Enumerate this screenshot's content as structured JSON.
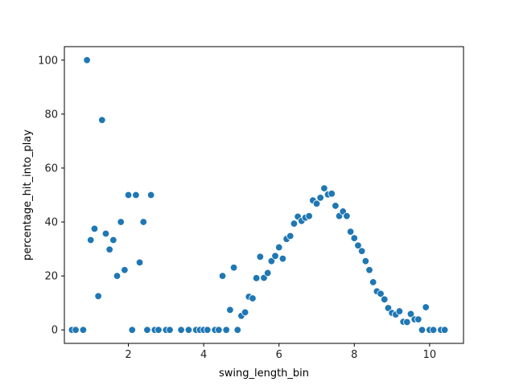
{
  "chart_data": {
    "type": "scatter",
    "xlabel": "swing_length_bin",
    "ylabel": "percentage_hit_into_play",
    "xlim": [
      0.3,
      10.9
    ],
    "ylim": [
      -5,
      105
    ],
    "xticks": [
      2,
      4,
      6,
      8,
      10
    ],
    "yticks": [
      0,
      20,
      40,
      60,
      80,
      100
    ],
    "grid": false,
    "marker_color": "#1f77b4",
    "points": [
      [
        0.5,
        0
      ],
      [
        0.6,
        0
      ],
      [
        0.8,
        0
      ],
      [
        0.9,
        100
      ],
      [
        1.0,
        33.3
      ],
      [
        1.1,
        37.5
      ],
      [
        1.2,
        12.5
      ],
      [
        1.3,
        77.8
      ],
      [
        1.4,
        35.7
      ],
      [
        1.5,
        29.8
      ],
      [
        1.6,
        33.3
      ],
      [
        1.7,
        20
      ],
      [
        1.8,
        40
      ],
      [
        1.9,
        22.2
      ],
      [
        2.0,
        50
      ],
      [
        2.1,
        0
      ],
      [
        2.2,
        50
      ],
      [
        2.3,
        25
      ],
      [
        2.4,
        40
      ],
      [
        2.5,
        0
      ],
      [
        2.6,
        50
      ],
      [
        2.7,
        0
      ],
      [
        2.8,
        0
      ],
      [
        3.0,
        0
      ],
      [
        3.1,
        0
      ],
      [
        3.4,
        0
      ],
      [
        3.6,
        0
      ],
      [
        3.8,
        0
      ],
      [
        3.9,
        0
      ],
      [
        4.0,
        0
      ],
      [
        4.1,
        0
      ],
      [
        4.3,
        0
      ],
      [
        4.4,
        0
      ],
      [
        4.5,
        20
      ],
      [
        4.6,
        0
      ],
      [
        4.7,
        7.4
      ],
      [
        4.8,
        23.1
      ],
      [
        4.9,
        0
      ],
      [
        5.0,
        5.2
      ],
      [
        5.1,
        6.5
      ],
      [
        5.2,
        12.3
      ],
      [
        5.3,
        11.7
      ],
      [
        5.4,
        19.2
      ],
      [
        5.5,
        27.1
      ],
      [
        5.6,
        19.3
      ],
      [
        5.7,
        21.1
      ],
      [
        5.8,
        25.5
      ],
      [
        5.9,
        27.4
      ],
      [
        6.0,
        30.6
      ],
      [
        6.1,
        26.4
      ],
      [
        6.2,
        33.7
      ],
      [
        6.3,
        34.8
      ],
      [
        6.4,
        39.4
      ],
      [
        6.5,
        42.0
      ],
      [
        6.6,
        40.4
      ],
      [
        6.7,
        41.6
      ],
      [
        6.8,
        42.2
      ],
      [
        6.9,
        48.0
      ],
      [
        7.0,
        46.8
      ],
      [
        7.1,
        49.0
      ],
      [
        7.2,
        52.5
      ],
      [
        7.3,
        50.2
      ],
      [
        7.4,
        50.5
      ],
      [
        7.5,
        46.0
      ],
      [
        7.6,
        42.2
      ],
      [
        7.7,
        43.9
      ],
      [
        7.8,
        42.2
      ],
      [
        7.9,
        36.4
      ],
      [
        8.0,
        34.0
      ],
      [
        8.1,
        31.3
      ],
      [
        8.2,
        29.2
      ],
      [
        8.3,
        25.5
      ],
      [
        8.4,
        22.2
      ],
      [
        8.5,
        17.7
      ],
      [
        8.6,
        14.3
      ],
      [
        8.7,
        13.4
      ],
      [
        8.8,
        11.3
      ],
      [
        8.9,
        8.1
      ],
      [
        9.0,
        6.3
      ],
      [
        9.1,
        5.7
      ],
      [
        9.2,
        6.9
      ],
      [
        9.3,
        3.0
      ],
      [
        9.4,
        2.9
      ],
      [
        9.5,
        5.9
      ],
      [
        9.6,
        3.9
      ],
      [
        9.7,
        3.9
      ],
      [
        9.8,
        0
      ],
      [
        9.9,
        8.4
      ],
      [
        10.0,
        0
      ],
      [
        10.1,
        0
      ],
      [
        10.3,
        0
      ],
      [
        10.4,
        0
      ]
    ]
  }
}
